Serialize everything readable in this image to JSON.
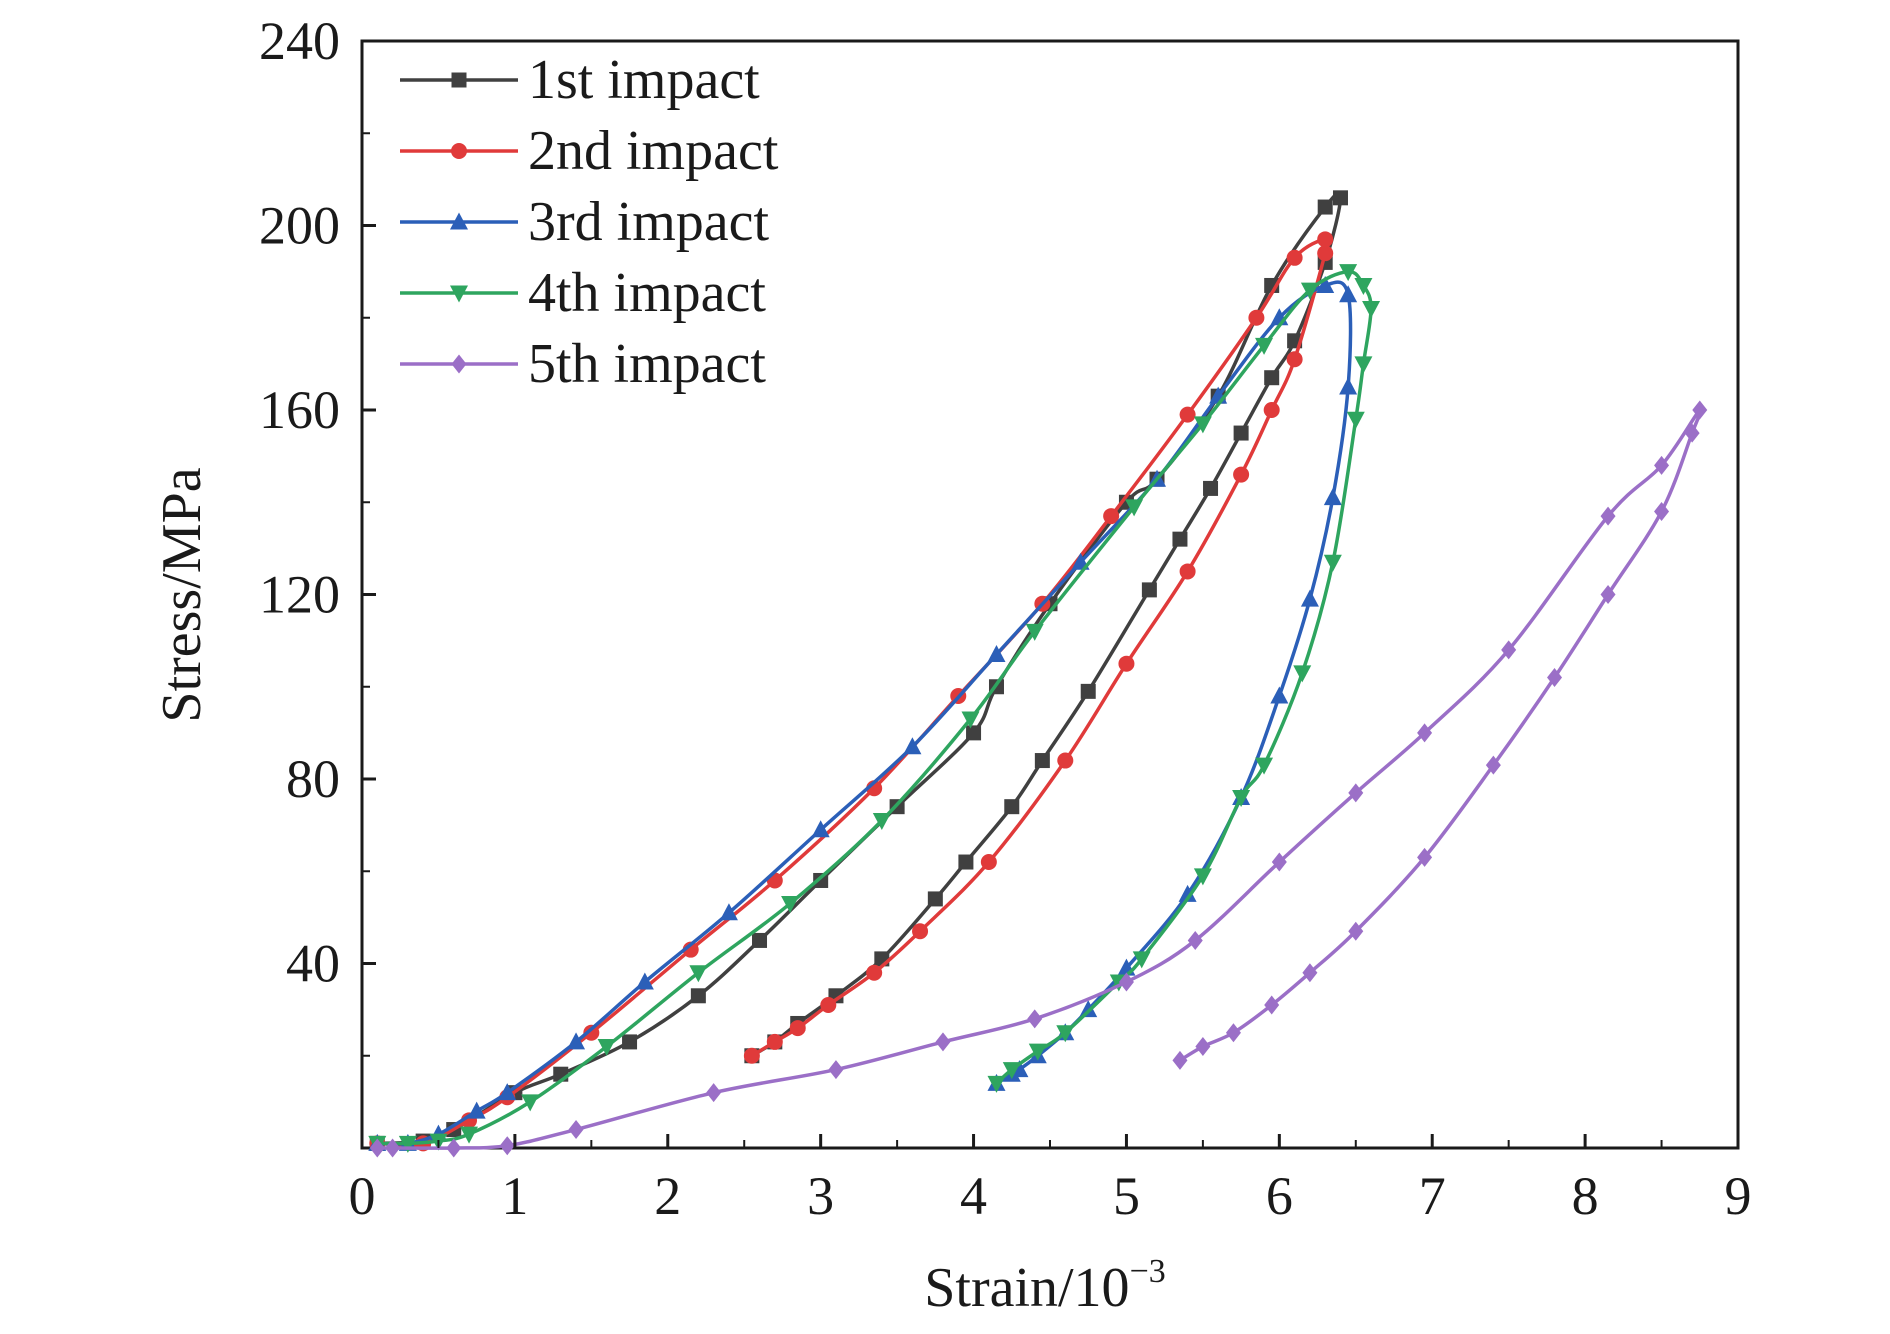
{
  "chart_data": {
    "type": "line",
    "xlabel": "Strain/10",
    "xlabel_sup": "−3",
    "ylabel": "Stress/MPa",
    "xlim": [
      0,
      9
    ],
    "ylim": [
      0,
      240
    ],
    "x_ticks": [
      "0",
      "1",
      "2",
      "3",
      "4",
      "5",
      "6",
      "7",
      "8",
      "9"
    ],
    "y_ticks": [
      "40",
      "80",
      "120",
      "160",
      "200",
      "240"
    ],
    "grid": false,
    "legend_position": "top-left",
    "series": [
      {
        "name": "1st impact",
        "color": "#404040",
        "marker": "square",
        "points": [
          [
            0.1,
            1
          ],
          [
            0.4,
            1.5
          ],
          [
            0.6,
            4
          ],
          [
            1.0,
            12
          ],
          [
            1.3,
            16
          ],
          [
            1.75,
            23
          ],
          [
            2.2,
            33
          ],
          [
            2.6,
            45
          ],
          [
            3.0,
            58
          ],
          [
            3.5,
            74
          ],
          [
            4.0,
            90
          ],
          [
            4.15,
            100
          ],
          [
            4.5,
            118
          ],
          [
            5.0,
            140
          ],
          [
            5.2,
            145
          ],
          [
            5.6,
            163
          ],
          [
            5.95,
            187
          ],
          [
            6.3,
            204
          ],
          [
            6.4,
            206
          ],
          [
            6.3,
            192
          ],
          [
            6.1,
            175
          ],
          [
            5.95,
            167
          ],
          [
            5.75,
            155
          ],
          [
            5.55,
            143
          ],
          [
            5.35,
            132
          ],
          [
            5.15,
            121
          ],
          [
            4.75,
            99
          ],
          [
            4.45,
            84
          ],
          [
            4.25,
            74
          ],
          [
            3.95,
            62
          ],
          [
            3.75,
            54
          ],
          [
            3.4,
            41
          ],
          [
            3.1,
            33
          ],
          [
            2.85,
            27
          ],
          [
            2.7,
            23
          ],
          [
            2.55,
            20
          ]
        ]
      },
      {
        "name": "2nd impact",
        "color": "#e03a3a",
        "marker": "circle",
        "points": [
          [
            0.1,
            1
          ],
          [
            0.4,
            1
          ],
          [
            0.7,
            6
          ],
          [
            0.95,
            11
          ],
          [
            1.5,
            25
          ],
          [
            2.15,
            43
          ],
          [
            2.7,
            58
          ],
          [
            3.35,
            78
          ],
          [
            3.9,
            98
          ],
          [
            4.45,
            118
          ],
          [
            4.9,
            137
          ],
          [
            5.4,
            159
          ],
          [
            5.85,
            180
          ],
          [
            6.1,
            193
          ],
          [
            6.3,
            197
          ],
          [
            6.3,
            194
          ],
          [
            6.1,
            171
          ],
          [
            5.95,
            160
          ],
          [
            5.75,
            146
          ],
          [
            5.4,
            125
          ],
          [
            5.0,
            105
          ],
          [
            4.6,
            84
          ],
          [
            4.1,
            62
          ],
          [
            3.65,
            47
          ],
          [
            3.35,
            38
          ],
          [
            3.05,
            31
          ],
          [
            2.85,
            26
          ],
          [
            2.7,
            23
          ],
          [
            2.55,
            20
          ]
        ]
      },
      {
        "name": "3rd impact",
        "color": "#2b5fb8",
        "marker": "triangle-up",
        "points": [
          [
            0.1,
            1
          ],
          [
            0.3,
            1
          ],
          [
            0.5,
            3
          ],
          [
            0.75,
            8
          ],
          [
            0.95,
            12
          ],
          [
            1.4,
            23
          ],
          [
            1.85,
            36
          ],
          [
            2.4,
            51
          ],
          [
            3.0,
            69
          ],
          [
            3.6,
            87
          ],
          [
            4.15,
            107
          ],
          [
            4.7,
            127
          ],
          [
            5.2,
            145
          ],
          [
            5.6,
            163
          ],
          [
            6.0,
            180
          ],
          [
            6.3,
            187
          ],
          [
            6.45,
            185
          ],
          [
            6.45,
            165
          ],
          [
            6.35,
            141
          ],
          [
            6.2,
            119
          ],
          [
            6.0,
            98
          ],
          [
            5.75,
            76
          ],
          [
            5.4,
            55
          ],
          [
            5.0,
            39
          ],
          [
            4.75,
            30
          ],
          [
            4.6,
            25
          ],
          [
            4.42,
            20
          ],
          [
            4.3,
            17
          ],
          [
            4.25,
            16
          ],
          [
            4.15,
            14
          ]
        ]
      },
      {
        "name": "4th impact",
        "color": "#2ea55f",
        "marker": "triangle-down",
        "points": [
          [
            0.1,
            1
          ],
          [
            0.3,
            1
          ],
          [
            0.5,
            1.5
          ],
          [
            0.7,
            3
          ],
          [
            1.1,
            10
          ],
          [
            1.6,
            22
          ],
          [
            2.2,
            38
          ],
          [
            2.8,
            53
          ],
          [
            3.4,
            71
          ],
          [
            3.98,
            93
          ],
          [
            4.4,
            112
          ],
          [
            5.05,
            139
          ],
          [
            5.5,
            157
          ],
          [
            5.9,
            174
          ],
          [
            6.2,
            186
          ],
          [
            6.45,
            190
          ],
          [
            6.55,
            187
          ],
          [
            6.6,
            182
          ],
          [
            6.55,
            170
          ],
          [
            6.5,
            158
          ],
          [
            6.35,
            127
          ],
          [
            6.15,
            103
          ],
          [
            5.9,
            83
          ],
          [
            5.75,
            76
          ],
          [
            5.5,
            59
          ],
          [
            5.1,
            41
          ],
          [
            4.95,
            36
          ],
          [
            4.6,
            25
          ],
          [
            4.42,
            21
          ],
          [
            4.25,
            17
          ],
          [
            4.15,
            14
          ]
        ]
      },
      {
        "name": "5th impact",
        "color": "#9b6fc7",
        "marker": "diamond",
        "points": [
          [
            0.1,
            0
          ],
          [
            0.2,
            0
          ],
          [
            0.6,
            0
          ],
          [
            0.95,
            0.5
          ],
          [
            1.4,
            4
          ],
          [
            2.3,
            12
          ],
          [
            3.1,
            17
          ],
          [
            3.8,
            23
          ],
          [
            4.4,
            28
          ],
          [
            5.0,
            36
          ],
          [
            5.45,
            45
          ],
          [
            6.0,
            62
          ],
          [
            6.5,
            77
          ],
          [
            6.95,
            90
          ],
          [
            7.5,
            108
          ],
          [
            8.15,
            137
          ],
          [
            8.5,
            148
          ],
          [
            8.75,
            160
          ],
          [
            8.7,
            155
          ],
          [
            8.5,
            138
          ],
          [
            8.15,
            120
          ],
          [
            7.8,
            102
          ],
          [
            7.4,
            83
          ],
          [
            6.95,
            63
          ],
          [
            6.5,
            47
          ],
          [
            6.2,
            38
          ],
          [
            5.95,
            31
          ],
          [
            5.7,
            25
          ],
          [
            5.5,
            22
          ],
          [
            5.35,
            19
          ]
        ]
      }
    ]
  }
}
